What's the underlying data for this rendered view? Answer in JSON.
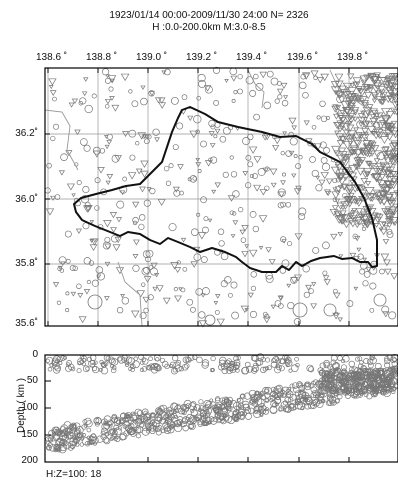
{
  "header": {
    "line1": "1923/01/14 00:00-2009/11/30 24:00   N=  2326",
    "line2": "H :0.0-200.0km  M:3.0-8.5"
  },
  "map": {
    "lon_ticks": [
      "138.6 ˚",
      "138.8 ˚",
      "139.0 ˚",
      "139.2 ˚",
      "139.4 ˚",
      "139.6 ˚",
      "139.8 ˚"
    ],
    "lat_ticks": [
      "36.2˚",
      "36.0˚",
      "35.8˚",
      "35.6˚"
    ]
  },
  "depth_panel": {
    "axis_label": "Depth ( km )",
    "ticks": [
      "0",
      "50",
      "100",
      "150",
      "200"
    ],
    "scale_text": "H:Z=100:  18"
  },
  "colors": {
    "frame": "#000000",
    "grid": "#999999",
    "boundary": "#111111",
    "symbols": "#777777"
  }
}
